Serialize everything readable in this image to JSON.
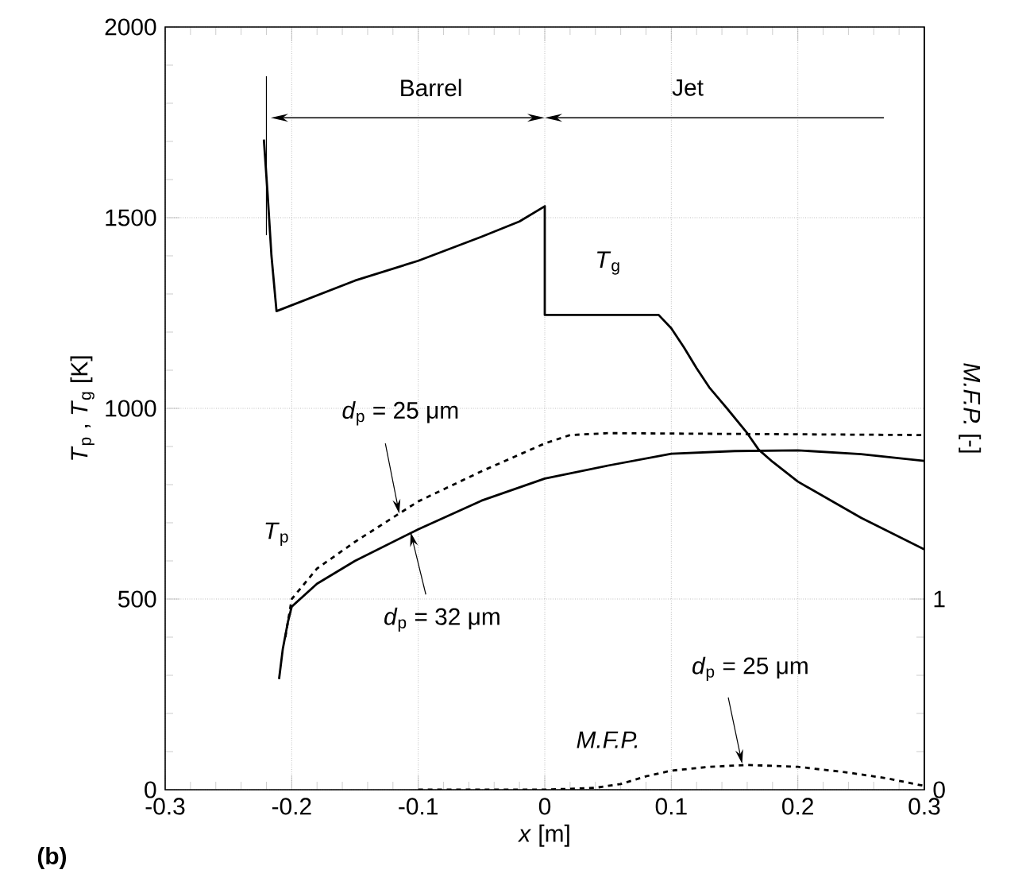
{
  "chart_data": {
    "type": "line",
    "xlabel": "*x* [m]",
    "ylabel": "*T*$_{p}$ , *T*$_{g}$ [K]",
    "y2label": "*M.F.P.* [-]",
    "xlim": [
      -0.3,
      0.3
    ],
    "xticks": [
      -0.3,
      -0.2,
      -0.1,
      0,
      0.1,
      0.2,
      0.3
    ],
    "ylim": [
      0,
      2000
    ],
    "yticks": [
      0,
      500,
      1000,
      1500,
      2000
    ],
    "y2lim": [
      0,
      4
    ],
    "y2ticks": [
      0,
      1
    ],
    "grid": true,
    "ref_lines": [
      {
        "axis": "x",
        "value": -0.22
      }
    ],
    "marker": "none",
    "series": [
      {
        "color": "#000000",
        "line_style": "solid",
        "x": [
          -0.222,
          -0.219,
          -0.216,
          -0.212,
          -0.15,
          -0.1,
          -0.05,
          -0.02,
          0,
          0,
          0.09,
          0.1,
          0.11,
          0.12,
          0.13,
          0.144,
          0.16,
          0.169,
          0.18,
          0.2,
          0.25,
          0.3
        ],
        "values": [
          1705,
          1560,
          1400,
          1255,
          1335,
          1387,
          1450,
          1490,
          1530,
          1245,
          1245,
          1210,
          1160,
          1105,
          1055,
          1000,
          935,
          892,
          860,
          808,
          713,
          630
        ]
      },
      {
        "color": "#000000",
        "line_style": "solid",
        "x": [
          -0.21,
          -0.207,
          -0.203,
          -0.2,
          -0.18,
          -0.15,
          -0.1,
          -0.05,
          0,
          0.05,
          0.1,
          0.15,
          0.2,
          0.25,
          0.3
        ],
        "values": [
          290,
          370,
          440,
          480,
          540,
          600,
          683,
          758,
          816,
          850,
          881,
          888,
          890,
          880,
          862
        ]
      },
      {
        "color": "#000000",
        "line_style": "dashed",
        "x": [
          -0.205,
          -0.2,
          -0.18,
          -0.15,
          -0.1,
          -0.05,
          0,
          0.02,
          0.05,
          0.3
        ],
        "values": [
          400,
          500,
          580,
          650,
          756,
          835,
          908,
          930,
          935,
          930
        ]
      },
      {
        "color": "#000000",
        "line_style": "dashed",
        "axis": "y2",
        "x": [
          -0.1,
          0,
          0.04,
          0.06,
          0.08,
          0.1,
          0.13,
          0.16,
          0.2,
          0.24,
          0.27,
          0.3
        ],
        "values": [
          0,
          0,
          0.01,
          0.03,
          0.07,
          0.1,
          0.12,
          0.13,
          0.12,
          0.09,
          0.06,
          0.02
        ]
      }
    ],
    "annotations": [
      "Barrel",
      "Jet",
      "*T*$_{g}$",
      "*T*$_{p}$",
      {
        "text": "*d*$_{p}$ = 25 μm",
        "x": -0.115,
        "y": 724
      },
      {
        "text": "*d*$_{p}$ = 32 μm",
        "x": -0.106,
        "y": 675
      },
      {
        "text": "*d*$_{p}$ = 25 μm",
        "x": 0.156,
        "y": 68
      },
      "*M.F.P.*",
      "**(b)**"
    ]
  }
}
